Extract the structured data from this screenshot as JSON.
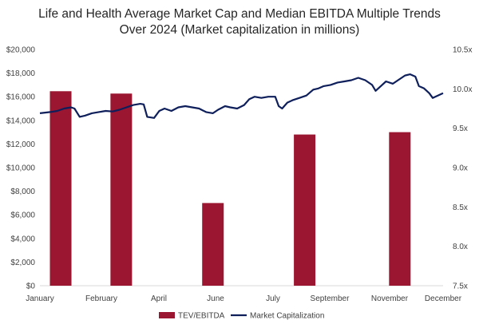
{
  "chart_data": {
    "type": "bar+line",
    "title_lines": [
      "Life and Health Average Market Cap and Median EBITDA Multiple Trends",
      "Over 2024  (Market capitalization in millions)"
    ],
    "x_tick_labels": [
      "January",
      "February",
      "April",
      "June",
      "July",
      "September",
      "November",
      "December"
    ],
    "y_left": {
      "min": 0,
      "max": 20000,
      "step": 2000,
      "tick_labels": [
        "$0",
        "$2,000",
        "$4,000",
        "$6,000",
        "$8,000",
        "$10,000",
        "$12,000",
        "$14,000",
        "$16,000",
        "$18,000",
        "$20,000"
      ]
    },
    "y_right": {
      "min": 7.5,
      "max": 10.5,
      "step": 0.5,
      "tick_labels": [
        "7.5x",
        "8.0x",
        "8.5x",
        "9.0x",
        "9.5x",
        "10.0x",
        "10.5x"
      ]
    },
    "bars": {
      "name": "TEV/EBITDA",
      "color": "#9b1630",
      "axis": "right",
      "points": [
        {
          "month": 0.6,
          "value": 9.97
        },
        {
          "month": 2.35,
          "value": 9.94
        },
        {
          "month": 5.0,
          "value": 8.55
        },
        {
          "month": 7.65,
          "value": 9.42
        },
        {
          "month": 10.4,
          "value": 9.45
        }
      ]
    },
    "line": {
      "name": "Market Capitalization",
      "color": "#0e1f5b",
      "axis": "left",
      "points": [
        [
          0.0,
          14600
        ],
        [
          0.3,
          14700
        ],
        [
          0.5,
          14800
        ],
        [
          0.7,
          15000
        ],
        [
          0.9,
          15100
        ],
        [
          1.0,
          15000
        ],
        [
          1.15,
          14300
        ],
        [
          1.3,
          14400
        ],
        [
          1.5,
          14600
        ],
        [
          1.7,
          14700
        ],
        [
          1.9,
          14800
        ],
        [
          2.1,
          14750
        ],
        [
          2.3,
          14900
        ],
        [
          2.5,
          15100
        ],
        [
          2.7,
          15300
        ],
        [
          2.9,
          15400
        ],
        [
          3.0,
          15350
        ],
        [
          3.1,
          14300
        ],
        [
          3.3,
          14200
        ],
        [
          3.45,
          14800
        ],
        [
          3.6,
          15000
        ],
        [
          3.8,
          14800
        ],
        [
          4.0,
          15100
        ],
        [
          4.2,
          15200
        ],
        [
          4.4,
          15100
        ],
        [
          4.6,
          15000
        ],
        [
          4.8,
          14700
        ],
        [
          5.0,
          14600
        ],
        [
          5.15,
          14900
        ],
        [
          5.35,
          15200
        ],
        [
          5.5,
          15100
        ],
        [
          5.7,
          15000
        ],
        [
          5.9,
          15300
        ],
        [
          6.05,
          15800
        ],
        [
          6.2,
          16000
        ],
        [
          6.4,
          15900
        ],
        [
          6.6,
          16000
        ],
        [
          6.8,
          16000
        ],
        [
          6.9,
          15200
        ],
        [
          7.0,
          15000
        ],
        [
          7.15,
          15500
        ],
        [
          7.3,
          15700
        ],
        [
          7.5,
          15900
        ],
        [
          7.7,
          16100
        ],
        [
          7.9,
          16600
        ],
        [
          8.05,
          16700
        ],
        [
          8.2,
          16900
        ],
        [
          8.4,
          17000
        ],
        [
          8.6,
          17200
        ],
        [
          8.8,
          17300
        ],
        [
          9.0,
          17400
        ],
        [
          9.2,
          17600
        ],
        [
          9.4,
          17400
        ],
        [
          9.6,
          17000
        ],
        [
          9.7,
          16500
        ],
        [
          9.85,
          16900
        ],
        [
          10.0,
          17300
        ],
        [
          10.2,
          17100
        ],
        [
          10.4,
          17500
        ],
        [
          10.55,
          17800
        ],
        [
          10.7,
          17900
        ],
        [
          10.85,
          17700
        ],
        [
          10.95,
          16900
        ],
        [
          11.1,
          16700
        ],
        [
          11.25,
          16300
        ],
        [
          11.35,
          15900
        ],
        [
          11.5,
          16100
        ],
        [
          11.65,
          16300
        ]
      ]
    },
    "legend": {
      "placement": "bottom-center",
      "entries": [
        "TEV/EBITDA",
        "Market Capitalization"
      ]
    },
    "grid": false
  }
}
